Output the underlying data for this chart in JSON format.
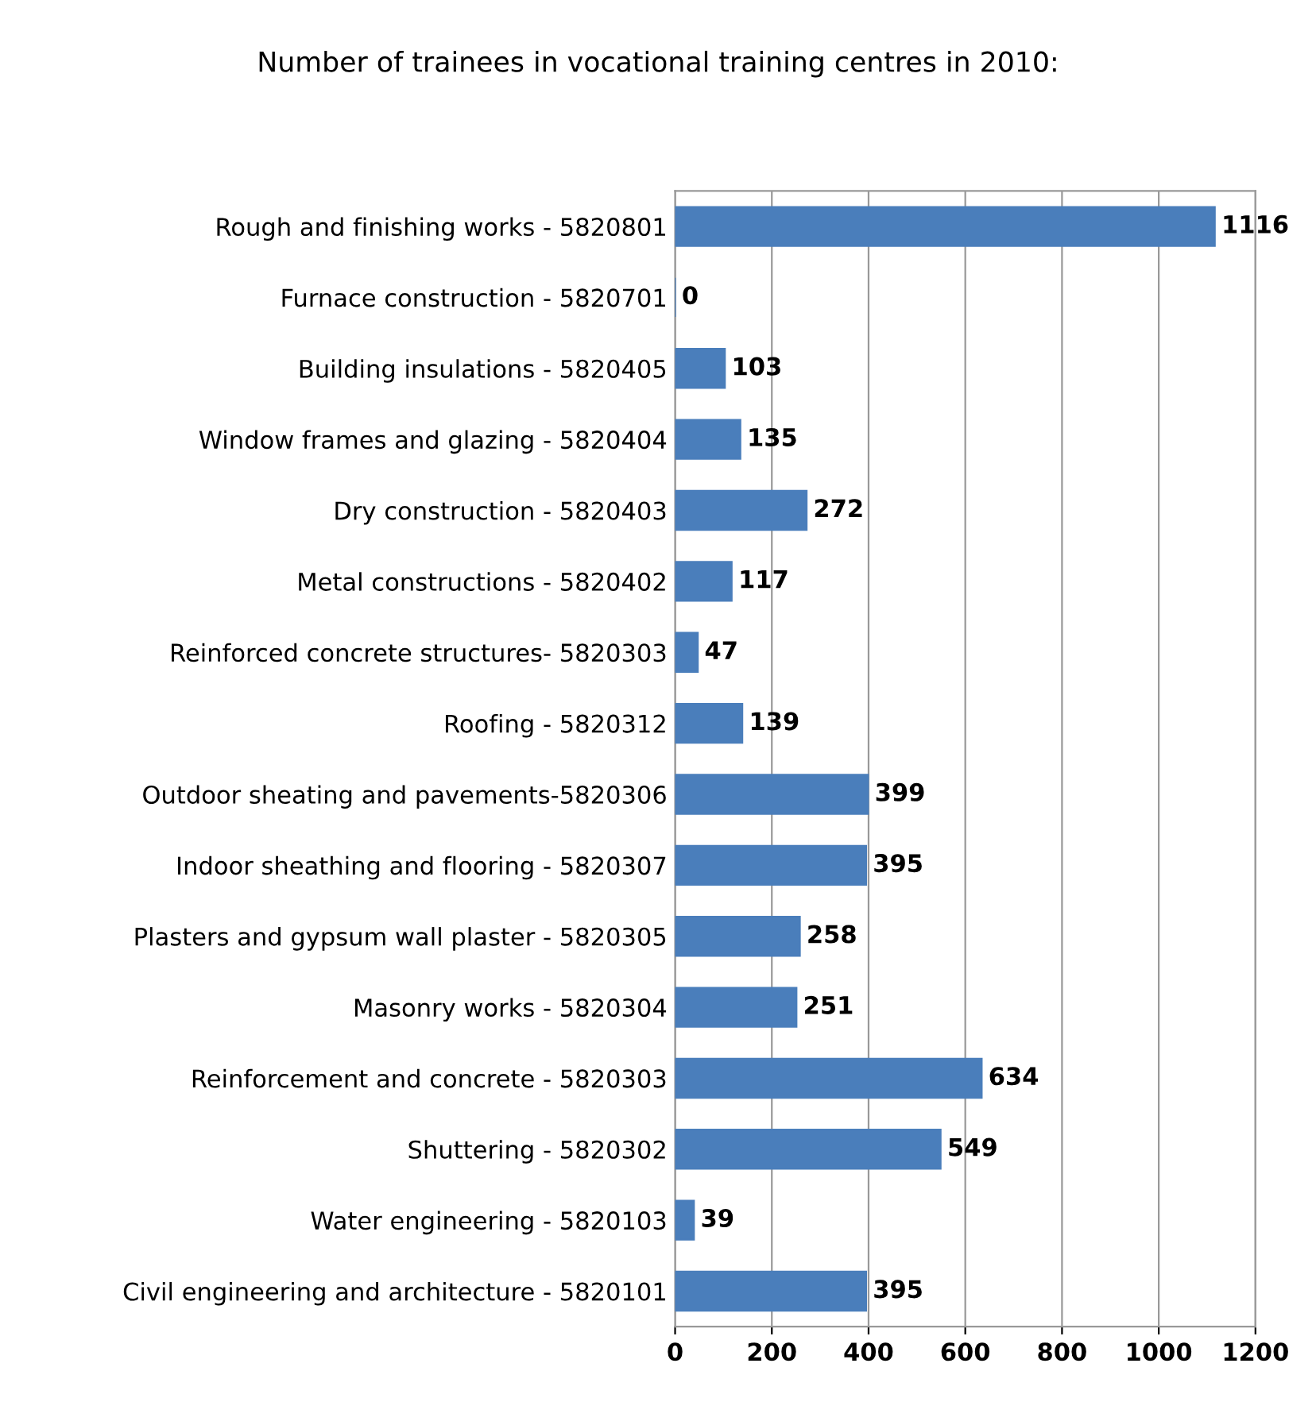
{
  "chart_data": {
    "type": "bar",
    "orientation": "horizontal",
    "title": "Number of trainees in vocational training centres in 2010:",
    "categories": [
      "Rough and finishing works - 5820801",
      "Furnace construction - 5820701",
      "Building insulations - 5820405",
      "Window frames and glazing - 5820404",
      "Dry construction - 5820403",
      "Metal constructions - 5820402",
      "Reinforced concrete structures- 5820303",
      "Roofing - 5820312",
      "Outdoor sheating and pavements-5820306",
      "Indoor sheathing and flooring - 5820307",
      "Plasters and gypsum wall plaster - 5820305",
      "Masonry works - 5820304",
      "Reinforcement and concrete - 5820303",
      "Shuttering - 5820302",
      "Water engineering - 5820103",
      "Civil engineering and architecture - 5820101"
    ],
    "values": [
      1116,
      0,
      103,
      135,
      272,
      117,
      47,
      139,
      399,
      395,
      258,
      251,
      634,
      549,
      39,
      395
    ],
    "color": "#4a7ebb",
    "data_labels": true,
    "xlim": [
      0,
      1200
    ],
    "xticks": [
      0,
      200,
      400,
      600,
      800,
      1000,
      1200
    ],
    "grid": "x",
    "legend": false
  }
}
